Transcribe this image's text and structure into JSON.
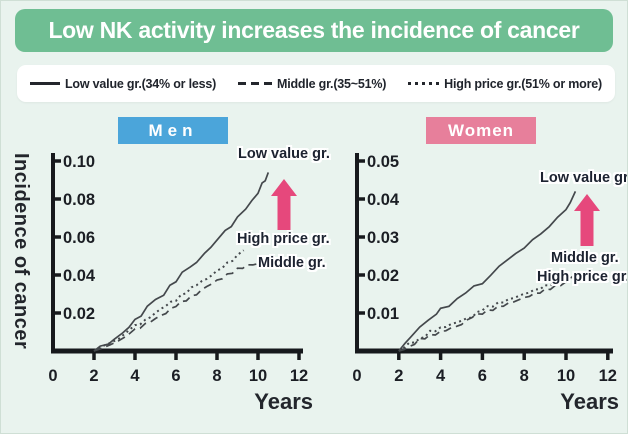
{
  "title": "Low NK activity increases the incidence of cancer",
  "legend": {
    "items": [
      {
        "style": "solid",
        "label": "Low value gr.(34% or less)"
      },
      {
        "style": "dashed",
        "label": "Middle gr.(35~51%)"
      },
      {
        "style": "dotted",
        "label": "High price gr.(51% or more)"
      }
    ]
  },
  "colors": {
    "background": "#e9f3ee",
    "banner_green": "#6fbe93",
    "men_blue": "#4ba5da",
    "women_pink": "#e77f9b",
    "arrow_pink": "#e6487c",
    "axis_black": "#17191d",
    "curve_gray": "#44484c",
    "text_dark": "#20242c"
  },
  "chart_data": [
    {
      "type": "line",
      "title": "Men",
      "xlabel": "Years",
      "ylabel": "Incidence of cancer",
      "xlim": [
        0,
        12
      ],
      "ylim": [
        0,
        0.1
      ],
      "xticks": [
        0,
        2,
        4,
        6,
        8,
        10,
        12
      ],
      "yticks": [
        "0.02",
        "0.04",
        "0.06",
        "0.08",
        "0.10"
      ],
      "grid": false,
      "legend_position": "top-banner-shared",
      "annotations": [
        "Low value gr.",
        "High price gr.",
        "Middle gr."
      ],
      "series": [
        {
          "name": "Low value gr.",
          "style": "solid",
          "points": [
            [
              2,
              0
            ],
            [
              2.3,
              0.002
            ],
            [
              2.7,
              0.004
            ],
            [
              3,
              0.006
            ],
            [
              3.4,
              0.009
            ],
            [
              3.7,
              0.013
            ],
            [
              4,
              0.016
            ],
            [
              4.3,
              0.019
            ],
            [
              4.6,
              0.023
            ],
            [
              5,
              0.027
            ],
            [
              5.4,
              0.03
            ],
            [
              5.7,
              0.034
            ],
            [
              6,
              0.037
            ],
            [
              6.3,
              0.041
            ],
            [
              6.7,
              0.044
            ],
            [
              7,
              0.047
            ],
            [
              7.4,
              0.051
            ],
            [
              7.7,
              0.055
            ],
            [
              8,
              0.058
            ],
            [
              8.4,
              0.063
            ],
            [
              8.7,
              0.066
            ],
            [
              9,
              0.07
            ],
            [
              9.4,
              0.075
            ],
            [
              9.7,
              0.079
            ],
            [
              10,
              0.083
            ],
            [
              10.2,
              0.088
            ],
            [
              10.35,
              0.09
            ],
            [
              10.5,
              0.094
            ]
          ]
        },
        {
          "name": "Middle gr.",
          "style": "dashed",
          "points": [
            [
              2,
              0
            ],
            [
              2.4,
              0.001
            ],
            [
              2.8,
              0.003
            ],
            [
              3.2,
              0.006
            ],
            [
              3.6,
              0.008
            ],
            [
              4,
              0.011
            ],
            [
              4.5,
              0.014
            ],
            [
              5,
              0.017
            ],
            [
              5.5,
              0.02
            ],
            [
              6,
              0.024
            ],
            [
              6.5,
              0.027
            ],
            [
              7,
              0.03
            ],
            [
              7.5,
              0.034
            ],
            [
              8,
              0.037
            ],
            [
              8.5,
              0.04
            ],
            [
              9,
              0.043
            ],
            [
              9.5,
              0.045
            ],
            [
              10,
              0.046
            ],
            [
              10.3,
              0.047
            ]
          ]
        },
        {
          "name": "High price gr.",
          "style": "dotted",
          "points": [
            [
              2,
              0
            ],
            [
              2.4,
              0.002
            ],
            [
              2.8,
              0.004
            ],
            [
              3.2,
              0.007
            ],
            [
              3.6,
              0.01
            ],
            [
              4,
              0.013
            ],
            [
              4.5,
              0.016
            ],
            [
              5,
              0.02
            ],
            [
              5.5,
              0.024
            ],
            [
              6,
              0.027
            ],
            [
              6.5,
              0.031
            ],
            [
              7,
              0.035
            ],
            [
              7.5,
              0.038
            ],
            [
              8,
              0.042
            ],
            [
              8.5,
              0.046
            ],
            [
              9,
              0.05
            ],
            [
              9.3,
              0.053
            ]
          ]
        }
      ]
    },
    {
      "type": "line",
      "title": "Women",
      "xlabel": "Years",
      "ylabel": "",
      "xlim": [
        0,
        12
      ],
      "ylim": [
        0,
        0.05
      ],
      "xticks": [
        0,
        2,
        4,
        6,
        8,
        10,
        12
      ],
      "yticks": [
        "0.01",
        "0.02",
        "0.03",
        "0.04",
        "0.05"
      ],
      "grid": false,
      "legend_position": "top-banner-shared",
      "annotations": [
        "Low value gr.",
        "Middle gr.",
        "High price gr."
      ],
      "series": [
        {
          "name": "Low value gr.",
          "style": "solid",
          "points": [
            [
              2,
              0
            ],
            [
              2.3,
              0.002
            ],
            [
              2.6,
              0.004
            ],
            [
              3,
              0.006
            ],
            [
              3.4,
              0.008
            ],
            [
              3.8,
              0.01
            ],
            [
              4,
              0.011
            ],
            [
              4.4,
              0.012
            ],
            [
              4.8,
              0.014
            ],
            [
              5.2,
              0.015
            ],
            [
              5.6,
              0.017
            ],
            [
              6,
              0.018
            ],
            [
              6.4,
              0.02
            ],
            [
              6.8,
              0.022
            ],
            [
              7.2,
              0.024
            ],
            [
              7.6,
              0.026
            ],
            [
              8,
              0.027
            ],
            [
              8.4,
              0.029
            ],
            [
              8.8,
              0.031
            ],
            [
              9.2,
              0.033
            ],
            [
              9.6,
              0.035
            ],
            [
              10,
              0.037
            ],
            [
              10.2,
              0.039
            ],
            [
              10.45,
              0.042
            ]
          ]
        },
        {
          "name": "Middle gr.",
          "style": "dashed",
          "points": [
            [
              2,
              0
            ],
            [
              2.5,
              0.001
            ],
            [
              3,
              0.003
            ],
            [
              3.5,
              0.004
            ],
            [
              4,
              0.005
            ],
            [
              4.5,
              0.006
            ],
            [
              5,
              0.007
            ],
            [
              5.5,
              0.009
            ],
            [
              6,
              0.01
            ],
            [
              6.5,
              0.011
            ],
            [
              7,
              0.012
            ],
            [
              7.5,
              0.013
            ],
            [
              8,
              0.014
            ],
            [
              8.5,
              0.015
            ],
            [
              9,
              0.016
            ],
            [
              9.5,
              0.017
            ],
            [
              10,
              0.018
            ],
            [
              10.4,
              0.02
            ]
          ]
        },
        {
          "name": "High price gr.",
          "style": "dotted",
          "points": [
            [
              2,
              0
            ],
            [
              2.5,
              0.002
            ],
            [
              3,
              0.003
            ],
            [
              3.5,
              0.005
            ],
            [
              4,
              0.006
            ],
            [
              4.5,
              0.007
            ],
            [
              5,
              0.008
            ],
            [
              5.5,
              0.009
            ],
            [
              6,
              0.011
            ],
            [
              6.5,
              0.012
            ],
            [
              7,
              0.013
            ],
            [
              7.5,
              0.014
            ],
            [
              8,
              0.015
            ],
            [
              8.5,
              0.016
            ],
            [
              9,
              0.017
            ],
            [
              9.5,
              0.018
            ],
            [
              10.1,
              0.019
            ]
          ]
        }
      ]
    }
  ]
}
